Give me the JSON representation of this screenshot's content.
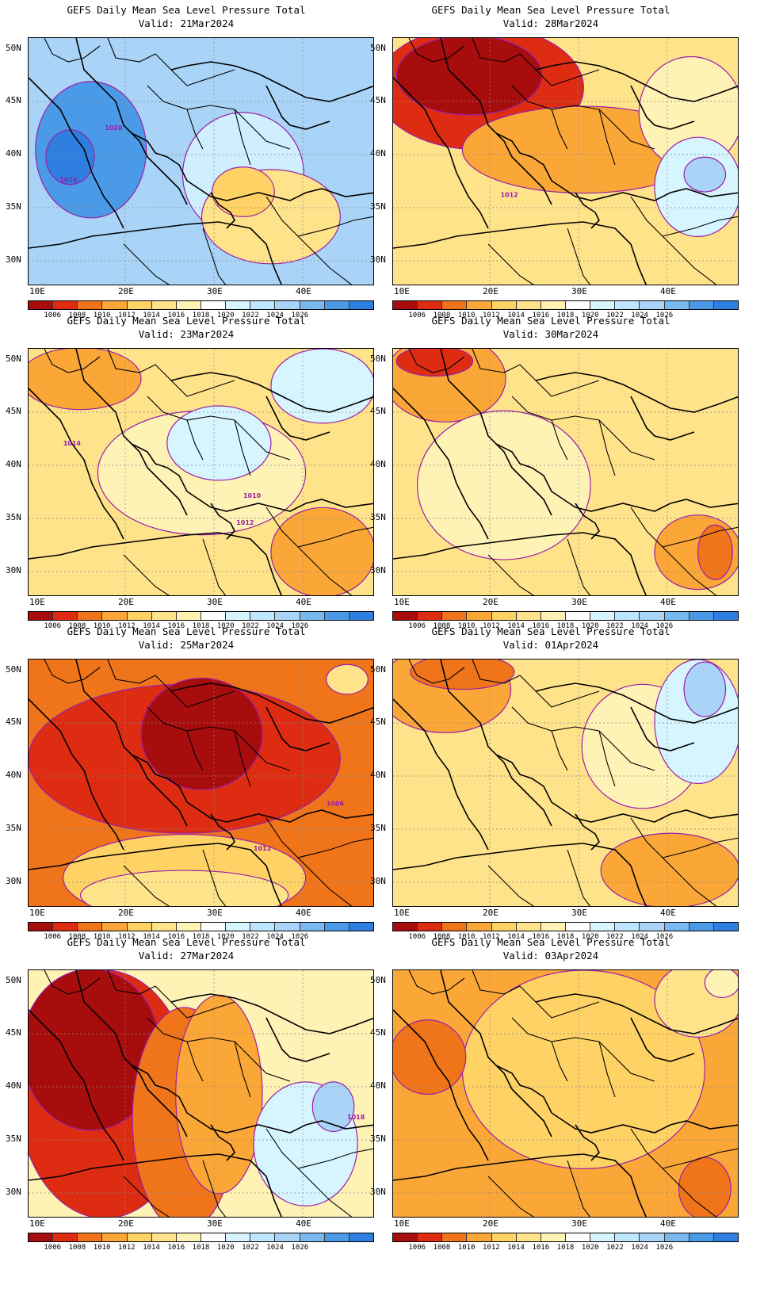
{
  "panels": [
    {
      "title": "GEFS Daily Mean Sea Level Pressure Total",
      "valid": "Valid: 21Mar2024",
      "bg": "#a9d4f7",
      "blobs": [
        [
          "#4b9ae8",
          0.18,
          0.45,
          0.32,
          0.55
        ],
        [
          "#2f7fe0",
          0.12,
          0.48,
          0.14,
          0.22
        ],
        [
          "#cfefff",
          0.62,
          0.55,
          0.35,
          0.5
        ],
        [
          "#ffe38a",
          0.7,
          0.72,
          0.4,
          0.38
        ],
        [
          "#ffd265",
          0.62,
          0.62,
          0.18,
          0.2
        ]
      ],
      "contour_labels": [
        [
          "1020",
          0.22,
          0.37
        ],
        [
          "1024",
          0.09,
          0.58
        ]
      ]
    },
    {
      "title": "GEFS Daily Mean Sea Level Pressure Total",
      "valid": "Valid: 28Mar2024",
      "bg": "#ffe38a",
      "blobs": [
        [
          "#de2c13",
          0.25,
          0.2,
          0.6,
          0.5
        ],
        [
          "#a80d0d",
          0.22,
          0.15,
          0.42,
          0.32
        ],
        [
          "#fba738",
          0.55,
          0.45,
          0.7,
          0.35
        ],
        [
          "#fff2b5",
          0.86,
          0.3,
          0.3,
          0.45
        ],
        [
          "#d6f5ff",
          0.88,
          0.6,
          0.25,
          0.4
        ],
        [
          "#a9d4f7",
          0.9,
          0.55,
          0.12,
          0.14
        ]
      ],
      "contour_labels": [
        [
          "1012",
          0.31,
          0.64
        ]
      ]
    },
    {
      "title": "GEFS Daily Mean Sea Level Pressure Total",
      "valid": "Valid: 23Mar2024",
      "bg": "#ffe38a",
      "blobs": [
        [
          "#fba738",
          0.15,
          0.12,
          0.35,
          0.25
        ],
        [
          "#fff2b5",
          0.5,
          0.5,
          0.6,
          0.5
        ],
        [
          "#d6f5ff",
          0.55,
          0.38,
          0.3,
          0.3
        ],
        [
          "#d6f5ff",
          0.85,
          0.15,
          0.3,
          0.3
        ],
        [
          "#fba738",
          0.85,
          0.82,
          0.3,
          0.36
        ]
      ],
      "contour_labels": [
        [
          "1014",
          0.1,
          0.39
        ],
        [
          "1010",
          0.62,
          0.6
        ],
        [
          "1012",
          0.6,
          0.71
        ]
      ]
    },
    {
      "title": "GEFS Daily Mean Sea Level Pressure Total",
      "valid": "Valid: 30Mar2024",
      "bg": "#ffe38a",
      "blobs": [
        [
          "#fba738",
          0.15,
          0.12,
          0.35,
          0.35
        ],
        [
          "#de2c13",
          0.12,
          0.05,
          0.22,
          0.12
        ],
        [
          "#fff2b5",
          0.32,
          0.55,
          0.5,
          0.6
        ],
        [
          "#fba738",
          0.88,
          0.82,
          0.25,
          0.3
        ],
        [
          "#f0741a",
          0.93,
          0.82,
          0.1,
          0.22
        ]
      ],
      "contour_labels": []
    },
    {
      "title": "GEFS Daily Mean Sea Level Pressure Total",
      "valid": "Valid: 25Mar2024",
      "bg": "#f0741a",
      "blobs": [
        [
          "#de2c13",
          0.45,
          0.4,
          0.9,
          0.6
        ],
        [
          "#a80d0d",
          0.5,
          0.3,
          0.35,
          0.45
        ],
        [
          "#ffd265",
          0.45,
          0.88,
          0.7,
          0.35
        ],
        [
          "#ffe38a",
          0.45,
          0.95,
          0.6,
          0.2
        ],
        [
          "#ffe38a",
          0.92,
          0.08,
          0.12,
          0.12
        ]
      ],
      "contour_labels": [
        [
          "1006",
          0.86,
          0.59
        ],
        [
          "1012",
          0.65,
          0.77
        ]
      ]
    },
    {
      "title": "GEFS Daily Mean Sea Level Pressure Total",
      "valid": "Valid: 01Apr2024",
      "bg": "#ffe38a",
      "blobs": [
        [
          "#fba738",
          0.15,
          0.12,
          0.38,
          0.35
        ],
        [
          "#f0741a",
          0.2,
          0.05,
          0.3,
          0.14
        ],
        [
          "#fff2b5",
          0.72,
          0.35,
          0.35,
          0.5
        ],
        [
          "#d6f5ff",
          0.88,
          0.25,
          0.25,
          0.5
        ],
        [
          "#a9d4f7",
          0.9,
          0.12,
          0.12,
          0.22
        ],
        [
          "#fba738",
          0.8,
          0.85,
          0.4,
          0.3
        ]
      ],
      "contour_labels": []
    },
    {
      "title": "GEFS Daily Mean Sea Level Pressure Total",
      "valid": "Valid: 27Mar2024",
      "bg": "#fff2b5",
      "blobs": [
        [
          "#de2c13",
          0.22,
          0.5,
          0.5,
          1.0
        ],
        [
          "#a80d0d",
          0.18,
          0.32,
          0.4,
          0.65
        ],
        [
          "#f0741a",
          0.45,
          0.6,
          0.3,
          0.9
        ],
        [
          "#fba738",
          0.55,
          0.5,
          0.25,
          0.8
        ],
        [
          "#d6f5ff",
          0.8,
          0.7,
          0.3,
          0.5
        ],
        [
          "#a9d4f7",
          0.88,
          0.55,
          0.12,
          0.2
        ]
      ],
      "contour_labels": [
        [
          "1018",
          0.92,
          0.6
        ]
      ]
    },
    {
      "title": "GEFS Daily Mean Sea Level Pressure Total",
      "valid": "Valid: 03Apr2024",
      "bg": "#fba738",
      "blobs": [
        [
          "#ffd265",
          0.55,
          0.4,
          0.7,
          0.8
        ],
        [
          "#f0741a",
          0.1,
          0.35,
          0.22,
          0.3
        ],
        [
          "#ffe38a",
          0.88,
          0.12,
          0.25,
          0.3
        ],
        [
          "#fff2b5",
          0.95,
          0.05,
          0.1,
          0.12
        ],
        [
          "#f0741a",
          0.9,
          0.88,
          0.15,
          0.25
        ]
      ],
      "contour_labels": []
    }
  ],
  "y_axis_labels": [
    "50N",
    "45N",
    "40N",
    "35N",
    "30N"
  ],
  "x_axis_labels": [
    "10E",
    "20E",
    "30E",
    "40E"
  ],
  "colorbar": {
    "colors": [
      "#a80d0d",
      "#de2c13",
      "#f0741a",
      "#fba738",
      "#ffd265",
      "#ffe38a",
      "#fff2b5",
      "#ffffff",
      "#d6f5ff",
      "#bde6ff",
      "#a9d4f7",
      "#79b9f0",
      "#4b9ae8",
      "#2f7fe0"
    ],
    "labels": [
      "1006",
      "1008",
      "1010",
      "1012",
      "1014",
      "1016",
      "1018",
      "1020",
      "1022",
      "1024",
      "1026"
    ]
  },
  "colors": {
    "contour": "#9a1fa8",
    "coast": "#000000",
    "grid": "#888888"
  }
}
